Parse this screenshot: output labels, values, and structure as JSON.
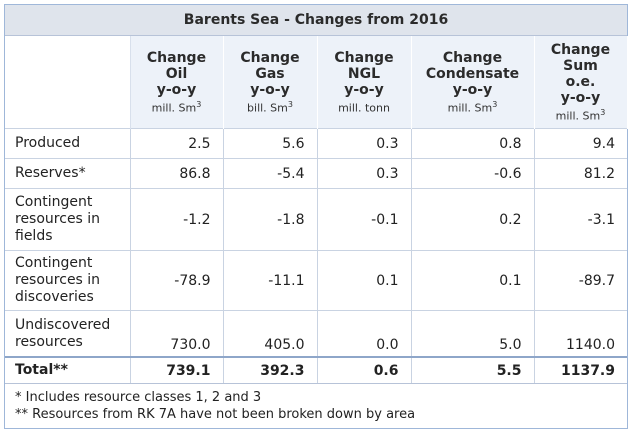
{
  "title": "Barents Sea - Changes from 2016",
  "headers": [
    {
      "lines": [
        "Change",
        "Oil",
        "y-o-y"
      ],
      "unit": "mill. Sm",
      "unit_sup": "3"
    },
    {
      "lines": [
        "Change",
        "Gas",
        "y-o-y"
      ],
      "unit": "bill. Sm",
      "unit_sup": "3"
    },
    {
      "lines": [
        "Change",
        "NGL",
        "y-o-y"
      ],
      "unit": "mill. tonn",
      "unit_sup": ""
    },
    {
      "lines": [
        "Change",
        "Condensate",
        "y-o-y"
      ],
      "unit": "mill. Sm",
      "unit_sup": "3"
    },
    {
      "lines": [
        "Change",
        "Sum",
        "o.e.",
        "y-o-y"
      ],
      "unit": "mill. Sm",
      "unit_sup": "3"
    }
  ],
  "rows": [
    {
      "label": [
        "Produced"
      ],
      "values": [
        "2.5",
        "5.6",
        "0.3",
        "0.8",
        "9.4"
      ]
    },
    {
      "label": [
        "Reserves*"
      ],
      "values": [
        "86.8",
        "-5.4",
        "0.3",
        "-0.6",
        "81.2"
      ]
    },
    {
      "label": [
        "Contingent",
        "resources in",
        "fields"
      ],
      "values": [
        "-1.2",
        "-1.8",
        "-0.1",
        "0.2",
        "-3.1"
      ]
    },
    {
      "label": [
        "Contingent",
        "resources in",
        "discoveries"
      ],
      "values": [
        "-78.9",
        "-11.1",
        "0.1",
        "0.1",
        "-89.7"
      ]
    },
    {
      "label": [
        "Undiscovered",
        "resources"
      ],
      "values": [
        "730.0",
        "405.0",
        "0.0",
        "5.0",
        "1140.0"
      ]
    }
  ],
  "total": {
    "label": "Total**",
    "values": [
      "739.1",
      "392.3",
      "0.6",
      "5.5",
      "1137.9"
    ]
  },
  "footnotes": [
    "* Includes resource classes 1, 2 and 3",
    "** Resources from RK 7A have not been broken down by area"
  ]
}
